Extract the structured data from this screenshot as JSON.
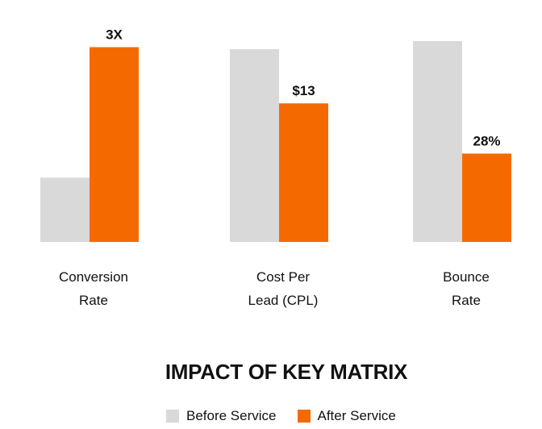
{
  "chart_data": {
    "type": "bar",
    "title": "IMPACT OF KEY MATRIX",
    "categories": [
      [
        "Conversion",
        "Rate"
      ],
      [
        "Cost Per",
        "Lead (CPL)"
      ],
      [
        "Bounce",
        "Rate"
      ]
    ],
    "series": [
      {
        "name": "Before Service",
        "color": "#d9d9d9",
        "values": [
          32,
          96,
          100
        ],
        "labels": [
          "",
          "",
          ""
        ]
      },
      {
        "name": "After Service",
        "color": "#f56a00",
        "values": [
          97,
          69,
          44
        ],
        "labels": [
          "3X",
          "$13",
          "28%"
        ]
      }
    ],
    "ylim": [
      0,
      100
    ],
    "grid": false,
    "legend_position": "bottom",
    "value_note": "relative bar heights, tallest bar = 100"
  }
}
